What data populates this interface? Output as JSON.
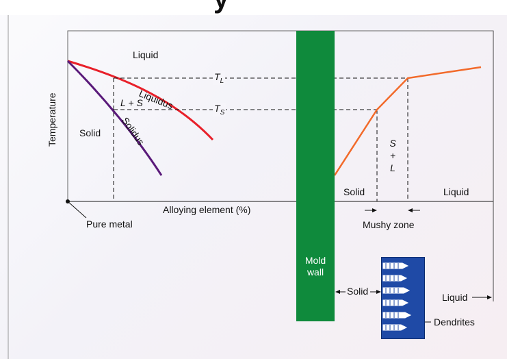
{
  "title_fragment": "y",
  "phase_diagram": {
    "liquid": "Liquid",
    "solid": "Solid",
    "l_plus_s": "L + S",
    "liquidus": "Liquidus",
    "solidus": "Solidus",
    "y_axis": "Temperature",
    "x_axis": "Alloying element (%)",
    "pure_metal": "Pure metal",
    "tl_letter": "T",
    "tl_sub": "L",
    "ts_letter": "T",
    "ts_sub": "S"
  },
  "mold": {
    "label_line1": "Mold",
    "label_line2": "wall"
  },
  "casting": {
    "solid": "Solid",
    "liquid": "Liquid",
    "s": "S",
    "plus": "+",
    "l": "L",
    "mushy_zone": "Mushy zone"
  },
  "dendrite_inset": {
    "solid": "Solid",
    "liquid": "Liquid",
    "dendrites": "Dendrites"
  },
  "colors": {
    "liquidus": "#e8202a",
    "solidus": "#5a1a7a",
    "temperature_profile": "#f26a2a",
    "mold_wall": "#0f8a3c",
    "dendrite_block": "#1f4aa6"
  }
}
